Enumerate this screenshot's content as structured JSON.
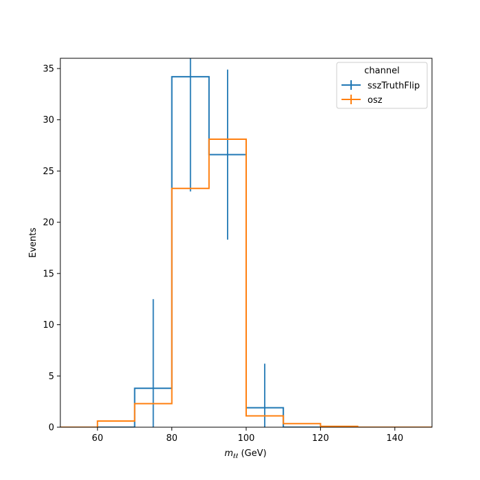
{
  "chart_data": {
    "type": "histogram",
    "xlabel_main": "m",
    "xlabel_sub": "ℓℓ",
    "xlabel_unit": " (GeV)",
    "ylabel": "Events",
    "xlim": [
      50,
      150
    ],
    "ylim": [
      0,
      36
    ],
    "xticks": [
      60,
      80,
      100,
      120,
      140
    ],
    "yticks": [
      0,
      5,
      10,
      15,
      20,
      25,
      30,
      35
    ],
    "grid": false,
    "legend": {
      "title": "channel",
      "placement": "top-right"
    },
    "bin_edges": [
      50,
      60,
      70,
      80,
      90,
      100,
      110,
      120,
      130,
      140,
      150
    ],
    "series": [
      {
        "name": "sszTruthFlip",
        "color": "#1f77b4",
        "values": [
          0,
          0,
          3.8,
          34.2,
          26.6,
          1.9,
          0,
          0,
          0,
          0
        ],
        "errors": [
          0,
          0,
          8.7,
          11.2,
          8.3,
          4.3,
          0,
          0,
          0,
          0
        ]
      },
      {
        "name": "osz",
        "color": "#ff7f0e",
        "values": [
          0,
          0.6,
          2.3,
          23.3,
          28.1,
          1.1,
          0.35,
          0.08,
          0,
          0
        ],
        "errors": [
          0,
          0,
          0,
          0,
          0,
          0,
          0,
          0,
          0,
          0
        ]
      }
    ]
  }
}
